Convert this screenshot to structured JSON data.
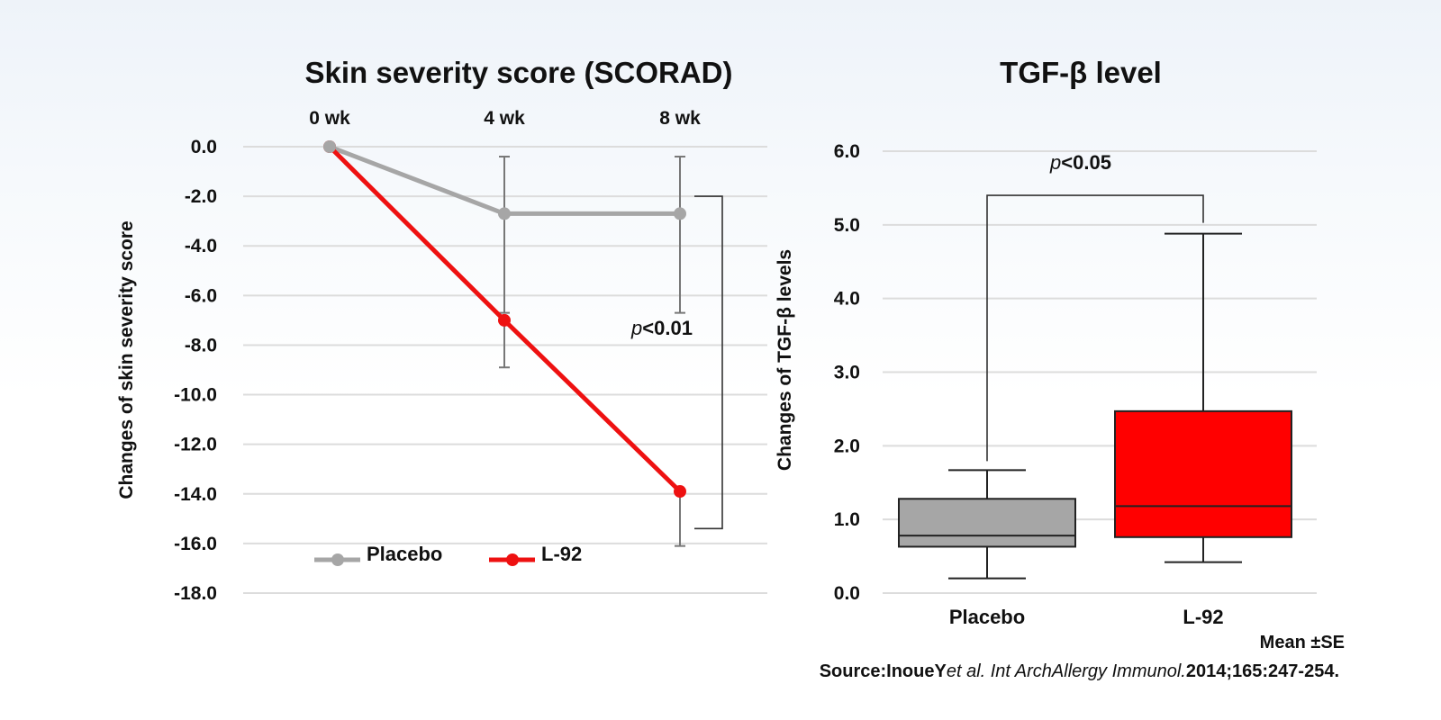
{
  "chart_data": [
    {
      "type": "line",
      "title": "Skin severity score (SCORAD)",
      "ylabel": "Changes of skin severity score",
      "x_ticks": [
        "0 wk",
        "4 wk",
        "8 wk"
      ],
      "y_ticks": [
        "0.0",
        "-2.0",
        "-4.0",
        "-6.0",
        "-8.0",
        "-10.0",
        "-12.0",
        "-14.0",
        "-16.0",
        "-18.0"
      ],
      "ylim": [
        -18,
        0
      ],
      "grid": true,
      "legend_position": "bottom-left",
      "series": [
        {
          "name": "Placebo",
          "color": "#a6a6a6",
          "values": [
            0,
            -2.7,
            -2.7
          ],
          "error_low": [
            0,
            -4.0,
            -4.0
          ],
          "error_high": [
            0,
            2.3,
            2.3
          ]
        },
        {
          "name": "L-92",
          "color": "#ee1111",
          "values": [
            0,
            -7.0,
            -13.9
          ],
          "error_low": [
            0,
            -1.9,
            -2.2
          ],
          "error_high": [
            0,
            0,
            0
          ]
        }
      ],
      "bracket": {
        "p_prefix": "p",
        "p_suffix": "<0.01",
        "top": -2.0,
        "bottom": -15.4
      }
    },
    {
      "type": "box",
      "title": "TGF-β level",
      "ylabel": "Changes of TGF-β levels",
      "categories": [
        "Placebo",
        "L-92"
      ],
      "y_ticks": [
        "6.0",
        "5.0",
        "4.0",
        "3.0",
        "2.0",
        "1.0",
        "0.0"
      ],
      "ylim": [
        0,
        6
      ],
      "grid": true,
      "boxes": [
        {
          "name": "Placebo",
          "color": "#a6a6a6",
          "min": 0.2,
          "q1": 0.63,
          "median": 0.78,
          "q3": 1.28,
          "max": 1.67
        },
        {
          "name": "L-92",
          "color": "#ff0000",
          "min": 0.42,
          "q1": 0.76,
          "median": 1.18,
          "q3": 2.47,
          "max": 4.88
        }
      ],
      "bracket": {
        "p_prefix": "p",
        "p_suffix": "<0.05",
        "level": 5.4
      }
    }
  ],
  "footnotes": {
    "mean_se": "Mean ±SE",
    "source_prefix": "Source:InoueY",
    "source_italic": "et al. Int ArchAllergy Immunol.",
    "source_suffix": "2014;165:247-254."
  }
}
